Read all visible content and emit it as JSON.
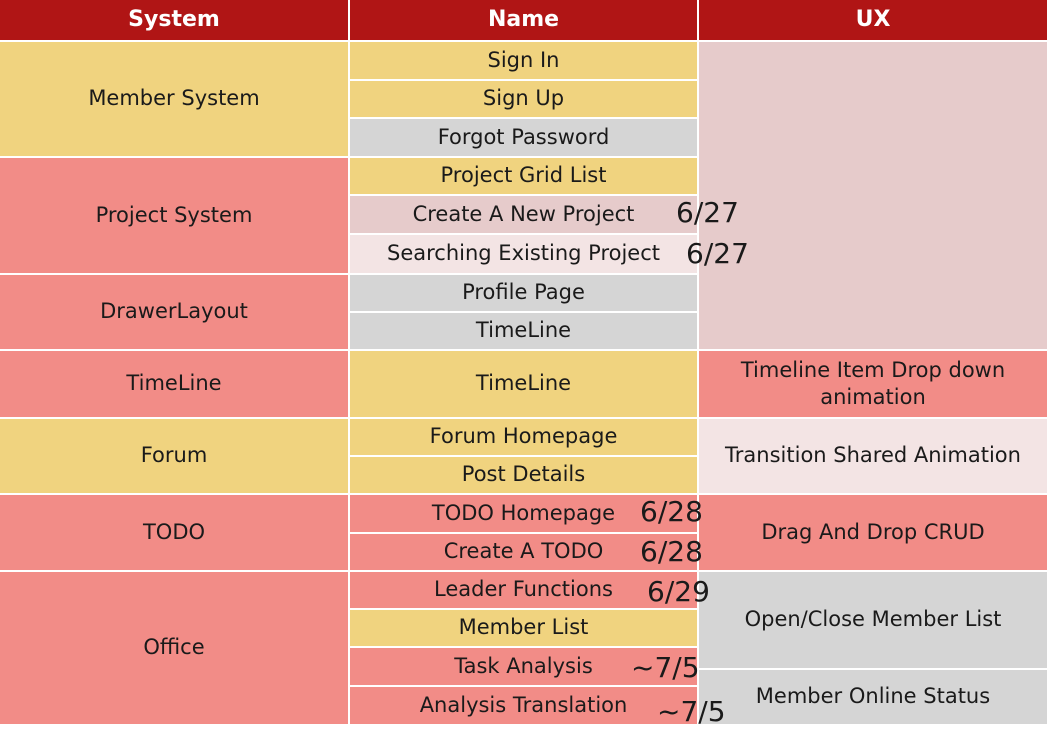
{
  "headers": {
    "system": "System",
    "name": "Name",
    "ux": "UX"
  },
  "systems": {
    "member": "Member System",
    "project": "Project System",
    "drawer": "DrawerLayout",
    "timeline": "TimeLine",
    "forum": "Forum",
    "todo": "TODO",
    "office": "Office"
  },
  "names": {
    "sign_in": "Sign In",
    "sign_up": "Sign Up",
    "forgot_password": "Forgot Password",
    "project_grid_list": "Project Grid List",
    "create_new_project": "Create A New Project",
    "searching_existing_project": "Searching Existing Project",
    "profile_page": "Profile Page",
    "timeline_drawer": "TimeLine",
    "timeline": "TimeLine",
    "forum_homepage": "Forum Homepage",
    "post_details": "Post Details",
    "todo_homepage": "TODO Homepage",
    "create_todo": "Create A TODO",
    "leader_functions": "Leader Functions",
    "member_list": "Member List",
    "task_analysis": "Task Analysis",
    "analysis_translation": "Analysis Translation"
  },
  "ux": {
    "timeline_dropdown": "Timeline Item Drop down animation",
    "transition_shared": "Transition Shared Animation",
    "drag_drop": "Drag And Drop CRUD",
    "open_close_member_list": "Open/Close Member List",
    "member_online_status": "Member Online Status"
  },
  "dates": {
    "create_new_project": "6/27",
    "searching_existing_project": "6/27",
    "todo_homepage": "6/28",
    "create_todo": "6/28",
    "leader_functions": "6/29",
    "task_analysis": "~7/5",
    "analysis_translation": "~7/5"
  },
  "colors": {
    "header": "#b01515",
    "yellow": "#f0d37f",
    "salmon": "#f28c87",
    "gray": "#d5d5d5",
    "pink": "#e6cbcb",
    "light_pink": "#f3e4e4"
  }
}
